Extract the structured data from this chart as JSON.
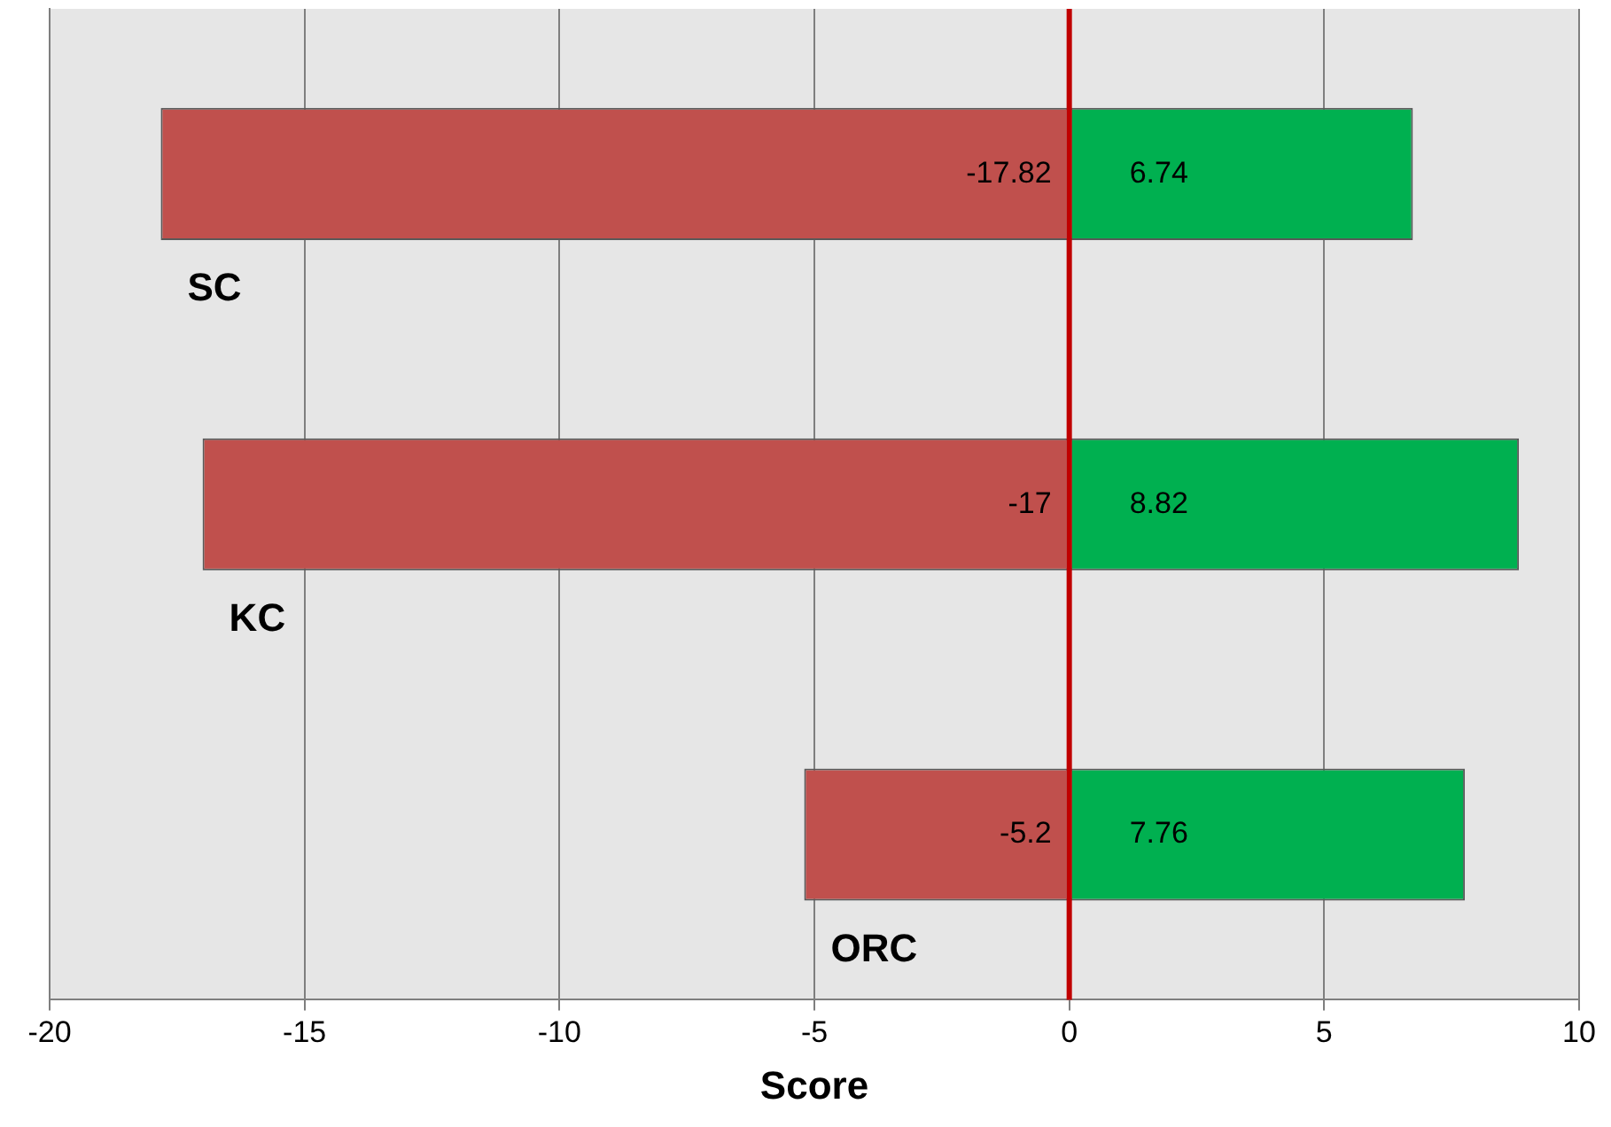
{
  "chart_data": {
    "type": "bar",
    "orientation": "horizontal",
    "stacked": true,
    "categories": [
      "SC",
      "KC",
      "ORC"
    ],
    "series": [
      {
        "color": "#c0504d",
        "values": [
          -17.82,
          -17,
          -5.2
        ]
      },
      {
        "color": "#00b050",
        "values": [
          6.74,
          8.82,
          7.76
        ]
      }
    ],
    "xlabel": "Score",
    "xlim": [
      -20,
      10
    ],
    "xticks": [
      -20,
      -15,
      -10,
      -5,
      0,
      5,
      10
    ],
    "grid": "x",
    "legend": false,
    "data_labels": true,
    "ref_lines": [
      {
        "axis": "x",
        "value": 0,
        "color": "#c00000"
      }
    ]
  }
}
